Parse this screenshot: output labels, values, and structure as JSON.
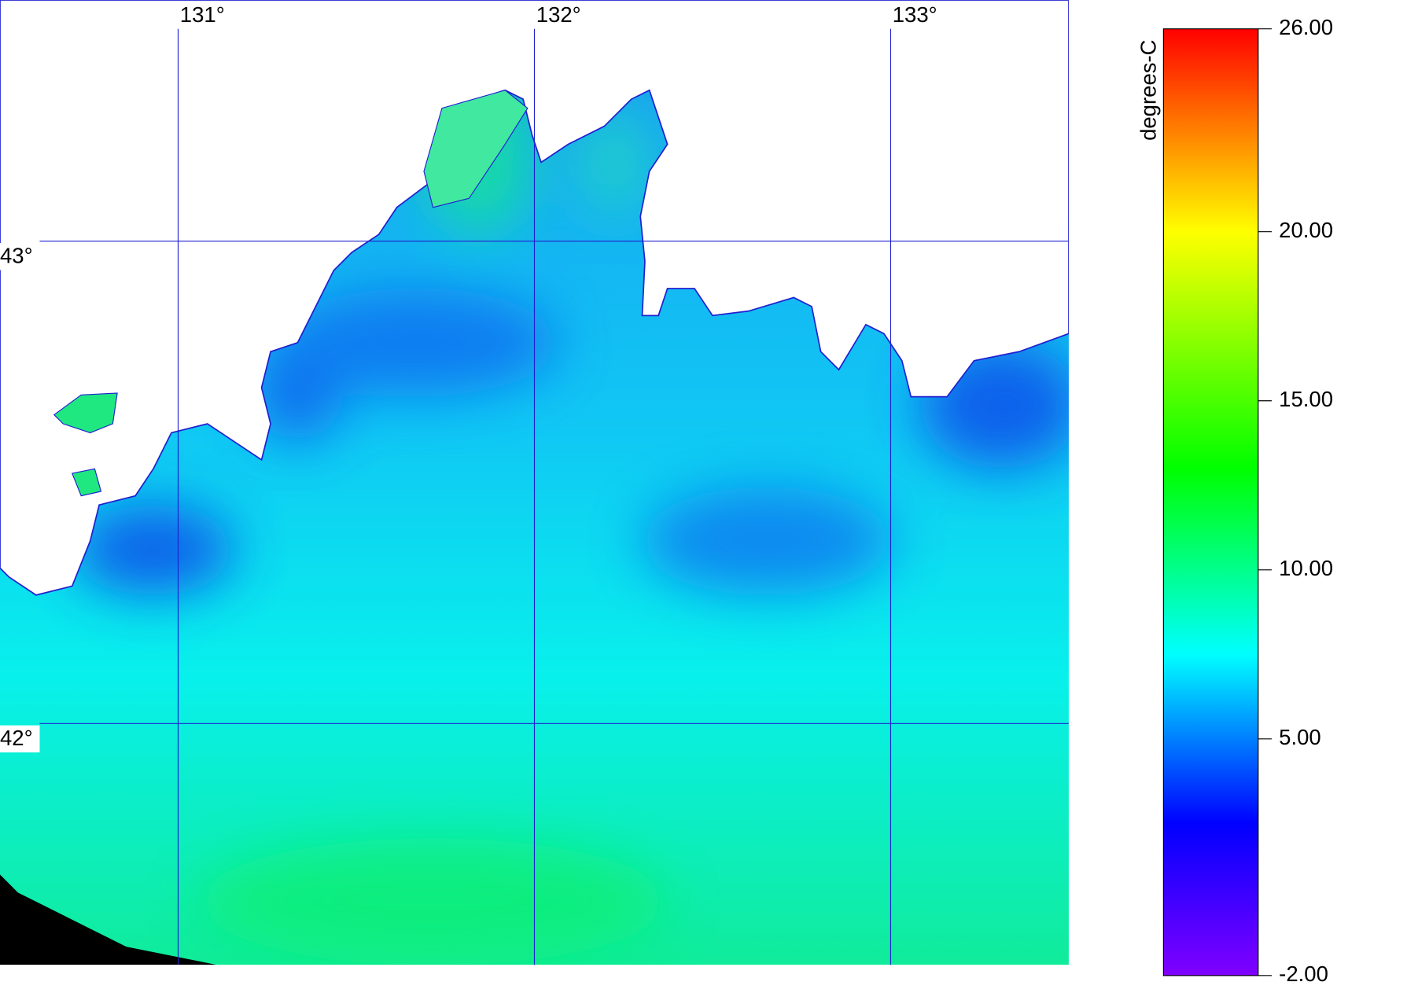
{
  "map": {
    "lonlim": [
      130.5,
      133.5
    ],
    "latlim": [
      41.5,
      43.5
    ],
    "lon_lines": [
      {
        "value": 131,
        "label": "131°"
      },
      {
        "value": 132,
        "label": "132°"
      },
      {
        "value": 133,
        "label": "133°"
      }
    ],
    "lat_lines": [
      {
        "value": 43,
        "label": "43°"
      },
      {
        "value": 42,
        "label": "42°"
      }
    ],
    "line_color": "#2020d0"
  },
  "colorbar": {
    "label": "degrees-C",
    "range": [
      -2,
      26
    ],
    "ticks": [
      {
        "value": 26,
        "label": "26.00"
      },
      {
        "value": 20,
        "label": "20.00"
      },
      {
        "value": 15,
        "label": "15.00"
      },
      {
        "value": 10,
        "label": "10.00"
      },
      {
        "value": 5,
        "label": "5.00"
      },
      {
        "value": -2,
        "label": "-2.00"
      }
    ],
    "colormap": [
      {
        "value": -2,
        "color": "#8000ff"
      },
      {
        "value": 2.5,
        "color": "#0000ff"
      },
      {
        "value": 7.5,
        "color": "#00ffff"
      },
      {
        "value": 13,
        "color": "#00ff00"
      },
      {
        "value": 20,
        "color": "#ffff00"
      },
      {
        "value": 26,
        "color": "#ff0000"
      }
    ]
  }
}
